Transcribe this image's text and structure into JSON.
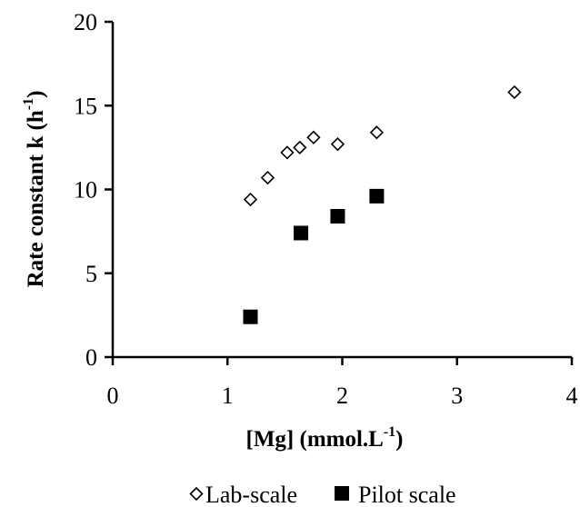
{
  "chart_data": {
    "type": "scatter",
    "title": "",
    "xlabel": {
      "base": "[Mg] (mmol.L",
      "sup": "-1",
      "tail": ")"
    },
    "ylabel": {
      "base": "Rate constant k (h",
      "sup": "-1",
      "tail": ")"
    },
    "xlim": [
      0,
      4
    ],
    "ylim": [
      0,
      20
    ],
    "x_ticks": [
      "0",
      "1",
      "2",
      "3",
      "4"
    ],
    "y_ticks": [
      "0",
      "5",
      "10",
      "15",
      "20"
    ],
    "grid": false,
    "legend_position": "bottom",
    "series": [
      {
        "name": "Lab-scale",
        "marker": "open-diamond",
        "color": "#000000",
        "x": [
          1.2,
          1.35,
          1.52,
          1.63,
          1.75,
          1.96,
          2.3,
          3.5
        ],
        "y": [
          9.4,
          10.7,
          12.2,
          12.5,
          13.1,
          12.7,
          13.4,
          15.8
        ]
      },
      {
        "name": "Pilot scale",
        "marker": "filled-square",
        "color": "#000000",
        "x": [
          1.2,
          1.64,
          1.96,
          2.3
        ],
        "y": [
          2.4,
          7.4,
          8.4,
          9.6
        ]
      }
    ]
  }
}
